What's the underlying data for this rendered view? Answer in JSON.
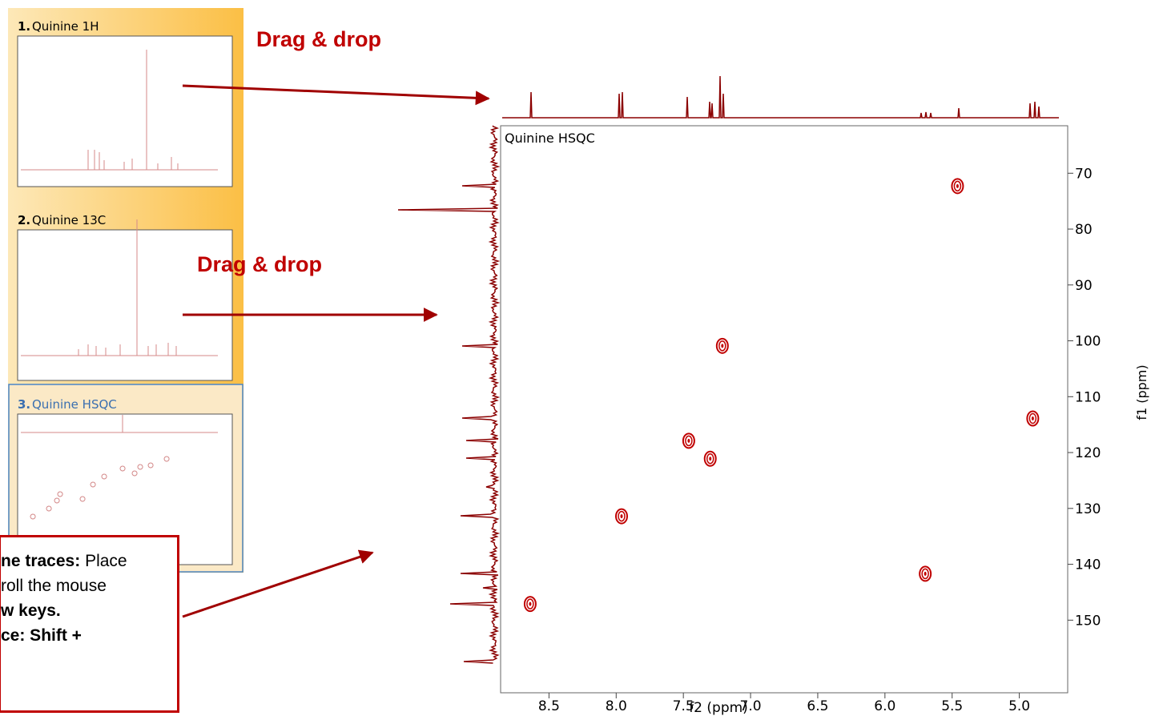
{
  "panels": [
    {
      "number": "1.",
      "title": "Quinine 1H"
    },
    {
      "number": "2.",
      "title": "Quinine 13C"
    },
    {
      "number": "3.",
      "title": "Quinine HSQC"
    }
  ],
  "annotations": {
    "drag_1": "Drag & drop",
    "drag_2": "Drag & drop",
    "callout": [
      {
        "bold": "ne traces:",
        "text": "Place"
      },
      {
        "text": "roll the mouse"
      },
      {
        "bold": "w keys."
      },
      {
        "bold": "ce: Shift +"
      }
    ]
  },
  "chart_data": {
    "type": "contour",
    "title": "Quinine HSQC",
    "x_label": "f2 (ppm)",
    "y_label": "f1 (ppm)",
    "xlim": [
      8.86,
      4.64
    ],
    "ylim": [
      61.5,
      163
    ],
    "xticks": [
      8.5,
      {
        "value": 8,
        "label": "8.0"
      },
      7.5,
      {
        "value": 7,
        "label": "7.0"
      },
      6.5,
      {
        "value": 6,
        "label": "6.0"
      },
      5.5,
      {
        "value": 5,
        "label": "5.0"
      }
    ],
    "yticks": [
      70,
      80,
      90,
      100,
      110,
      120,
      130,
      140,
      150
    ],
    "peaks": {
      "x": [
        5.46,
        7.21,
        4.9,
        7.46,
        7.3,
        7.96,
        5.7,
        8.64
      ],
      "y": [
        72.3,
        100.9,
        113.9,
        117.9,
        121.1,
        131.4,
        141.7,
        147.1
      ]
    },
    "color": "#c00000"
  }
}
